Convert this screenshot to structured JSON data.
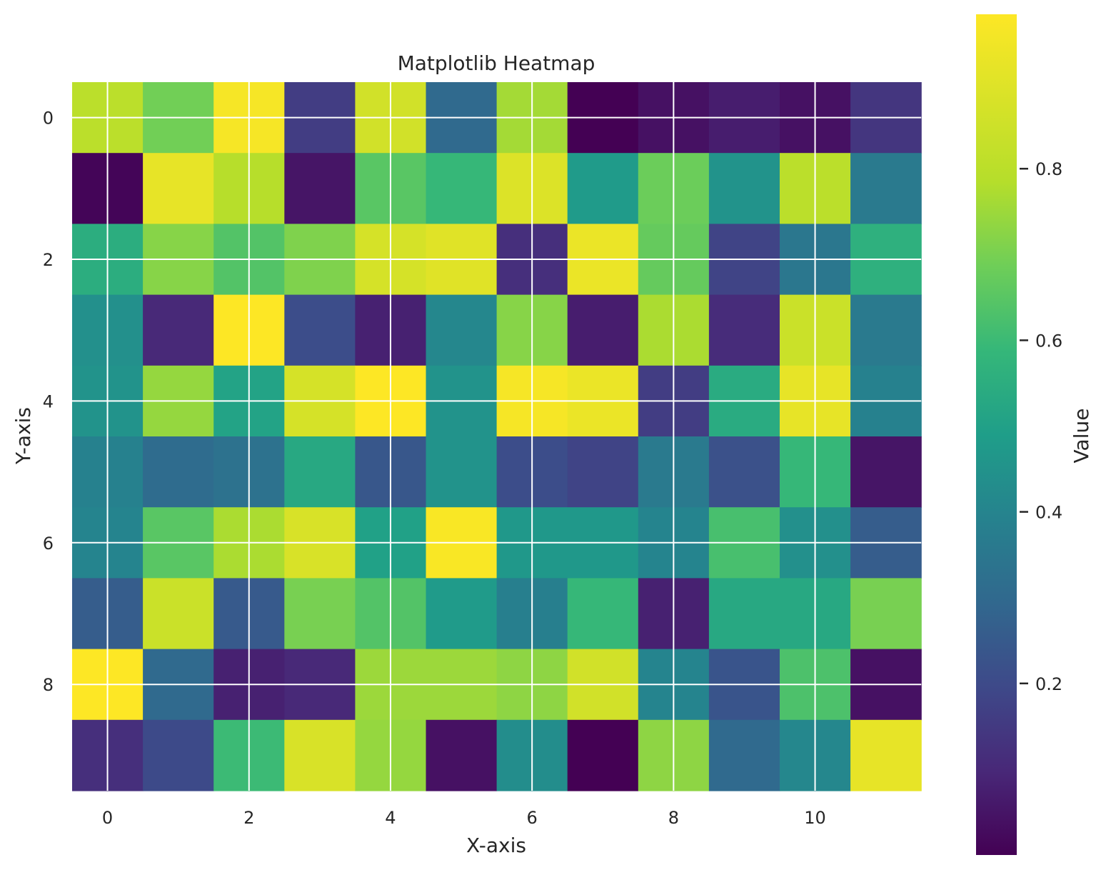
{
  "chart_data": {
    "type": "heatmap",
    "title": "Matplotlib Heatmap",
    "xlabel": "X-axis",
    "ylabel": "Y-axis",
    "colorbar_label": "Value",
    "colormap": "viridis",
    "x_ticks": [
      0,
      2,
      4,
      6,
      8,
      10
    ],
    "y_ticks": [
      0,
      2,
      4,
      6,
      8
    ],
    "colorbar_ticks": [
      0.2,
      0.4,
      0.6,
      0.8
    ],
    "value_range": [
      0.0,
      0.98
    ],
    "grid": true,
    "rows": 10,
    "cols": 12,
    "values": [
      [
        0.8,
        0.69,
        0.96,
        0.16,
        0.86,
        0.3,
        0.76,
        0.0,
        0.04,
        0.07,
        0.04,
        0.14
      ],
      [
        0.01,
        0.92,
        0.79,
        0.05,
        0.65,
        0.59,
        0.89,
        0.48,
        0.68,
        0.45,
        0.8,
        0.36
      ],
      [
        0.55,
        0.72,
        0.64,
        0.71,
        0.87,
        0.9,
        0.12,
        0.93,
        0.67,
        0.18,
        0.35,
        0.56
      ],
      [
        0.44,
        0.1,
        0.98,
        0.21,
        0.08,
        0.41,
        0.72,
        0.07,
        0.77,
        0.11,
        0.84,
        0.36
      ],
      [
        0.45,
        0.74,
        0.51,
        0.87,
        0.98,
        0.45,
        0.96,
        0.93,
        0.16,
        0.54,
        0.92,
        0.39
      ],
      [
        0.39,
        0.31,
        0.33,
        0.53,
        0.24,
        0.45,
        0.21,
        0.18,
        0.36,
        0.22,
        0.59,
        0.05
      ],
      [
        0.4,
        0.65,
        0.77,
        0.88,
        0.5,
        0.97,
        0.47,
        0.47,
        0.4,
        0.62,
        0.44,
        0.26
      ],
      [
        0.26,
        0.84,
        0.25,
        0.7,
        0.64,
        0.48,
        0.38,
        0.59,
        0.08,
        0.53,
        0.53,
        0.7
      ],
      [
        0.98,
        0.3,
        0.08,
        0.1,
        0.75,
        0.75,
        0.73,
        0.86,
        0.4,
        0.23,
        0.63,
        0.04
      ],
      [
        0.12,
        0.2,
        0.6,
        0.88,
        0.74,
        0.04,
        0.43,
        0.0,
        0.73,
        0.3,
        0.41,
        0.92
      ]
    ]
  }
}
